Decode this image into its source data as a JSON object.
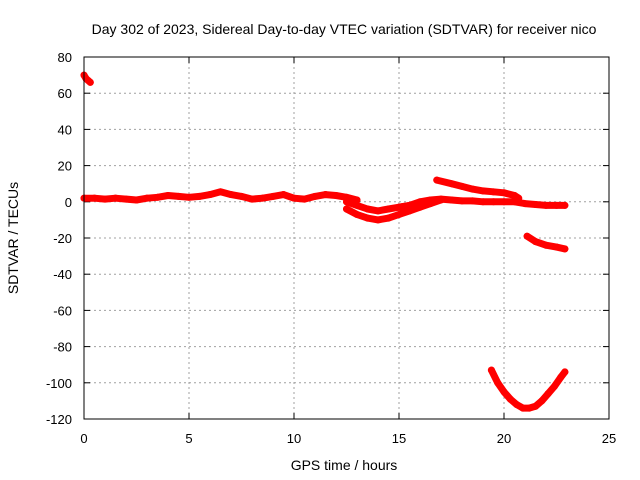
{
  "chart_data": {
    "type": "scatter",
    "title": "Day 302 of 2023, Sidereal Day-to-day VTEC variation (SDTVAR) for receiver nico",
    "xlabel": "GPS time / hours",
    "ylabel": "SDTVAR / TECUs",
    "xlim": [
      0,
      25
    ],
    "ylim": [
      -120,
      80
    ],
    "xticks": [
      0,
      5,
      10,
      15,
      20,
      25
    ],
    "yticks": [
      80,
      60,
      40,
      20,
      0,
      -20,
      -40,
      -60,
      -80,
      -100,
      -120
    ],
    "grid": true,
    "legend": "none",
    "marker_color": "#ff0000",
    "series": [
      {
        "name": "arc-1",
        "x": [
          0.0,
          0.1,
          0.2,
          0.3
        ],
        "y": [
          70,
          68,
          67,
          66
        ]
      },
      {
        "name": "arc-2",
        "x": [
          0,
          0.5,
          1,
          1.5,
          2,
          2.5,
          3,
          3.5,
          4,
          4.5,
          5,
          5.5,
          6,
          6.5,
          7,
          7.5,
          8,
          8.5,
          9,
          9.5,
          10,
          10.5,
          11,
          11.5,
          12,
          12.5,
          13
        ],
        "y": [
          2,
          2,
          1.5,
          2,
          1.5,
          1,
          2,
          2.5,
          3.5,
          3,
          2.5,
          3,
          4,
          5.5,
          4,
          3,
          1.5,
          2,
          3,
          4,
          2,
          1.5,
          3,
          4,
          3.5,
          2.5,
          1
        ]
      },
      {
        "name": "arc-3",
        "x": [
          12.5,
          13,
          13.5,
          14,
          14.5,
          15,
          15.5,
          16
        ],
        "y": [
          0,
          -2,
          -4,
          -5,
          -4,
          -3,
          -2,
          -1
        ]
      },
      {
        "name": "arc-4",
        "x": [
          12.5,
          13,
          13.5,
          14,
          14.5,
          15,
          15.5,
          16,
          16.5,
          17
        ],
        "y": [
          -4,
          -7,
          -9,
          -10,
          -9,
          -7,
          -5,
          -3,
          -1,
          1
        ]
      },
      {
        "name": "arc-5",
        "x": [
          15,
          15.5,
          16,
          16.5,
          17,
          17.5,
          18,
          18.5,
          19,
          19.5,
          20,
          20.5,
          21,
          21.5,
          22,
          22.5,
          22.9
        ],
        "y": [
          -3,
          -2,
          0,
          1,
          1.5,
          1,
          0.5,
          0.5,
          0,
          0,
          0,
          0,
          -1,
          -1.5,
          -2,
          -2,
          -2
        ]
      },
      {
        "name": "arc-6",
        "x": [
          16.8,
          17.5,
          18,
          18.5,
          19,
          19.5,
          20,
          20.5,
          20.7
        ],
        "y": [
          12,
          10,
          8.5,
          7,
          6,
          5.5,
          5,
          3.5,
          2
        ]
      },
      {
        "name": "arc-7",
        "x": [
          21.1,
          21.5,
          22,
          22.5,
          22.9
        ],
        "y": [
          -19,
          -22,
          -24,
          -25,
          -26
        ]
      },
      {
        "name": "arc-8",
        "x": [
          19.4,
          19.7,
          20,
          20.3,
          20.6,
          20.9,
          21.2,
          21.5,
          21.8,
          22.1,
          22.4,
          22.7,
          22.9
        ],
        "y": [
          -93,
          -100,
          -105,
          -109,
          -112,
          -114,
          -114,
          -113,
          -110,
          -106,
          -102,
          -97,
          -94
        ]
      }
    ]
  }
}
